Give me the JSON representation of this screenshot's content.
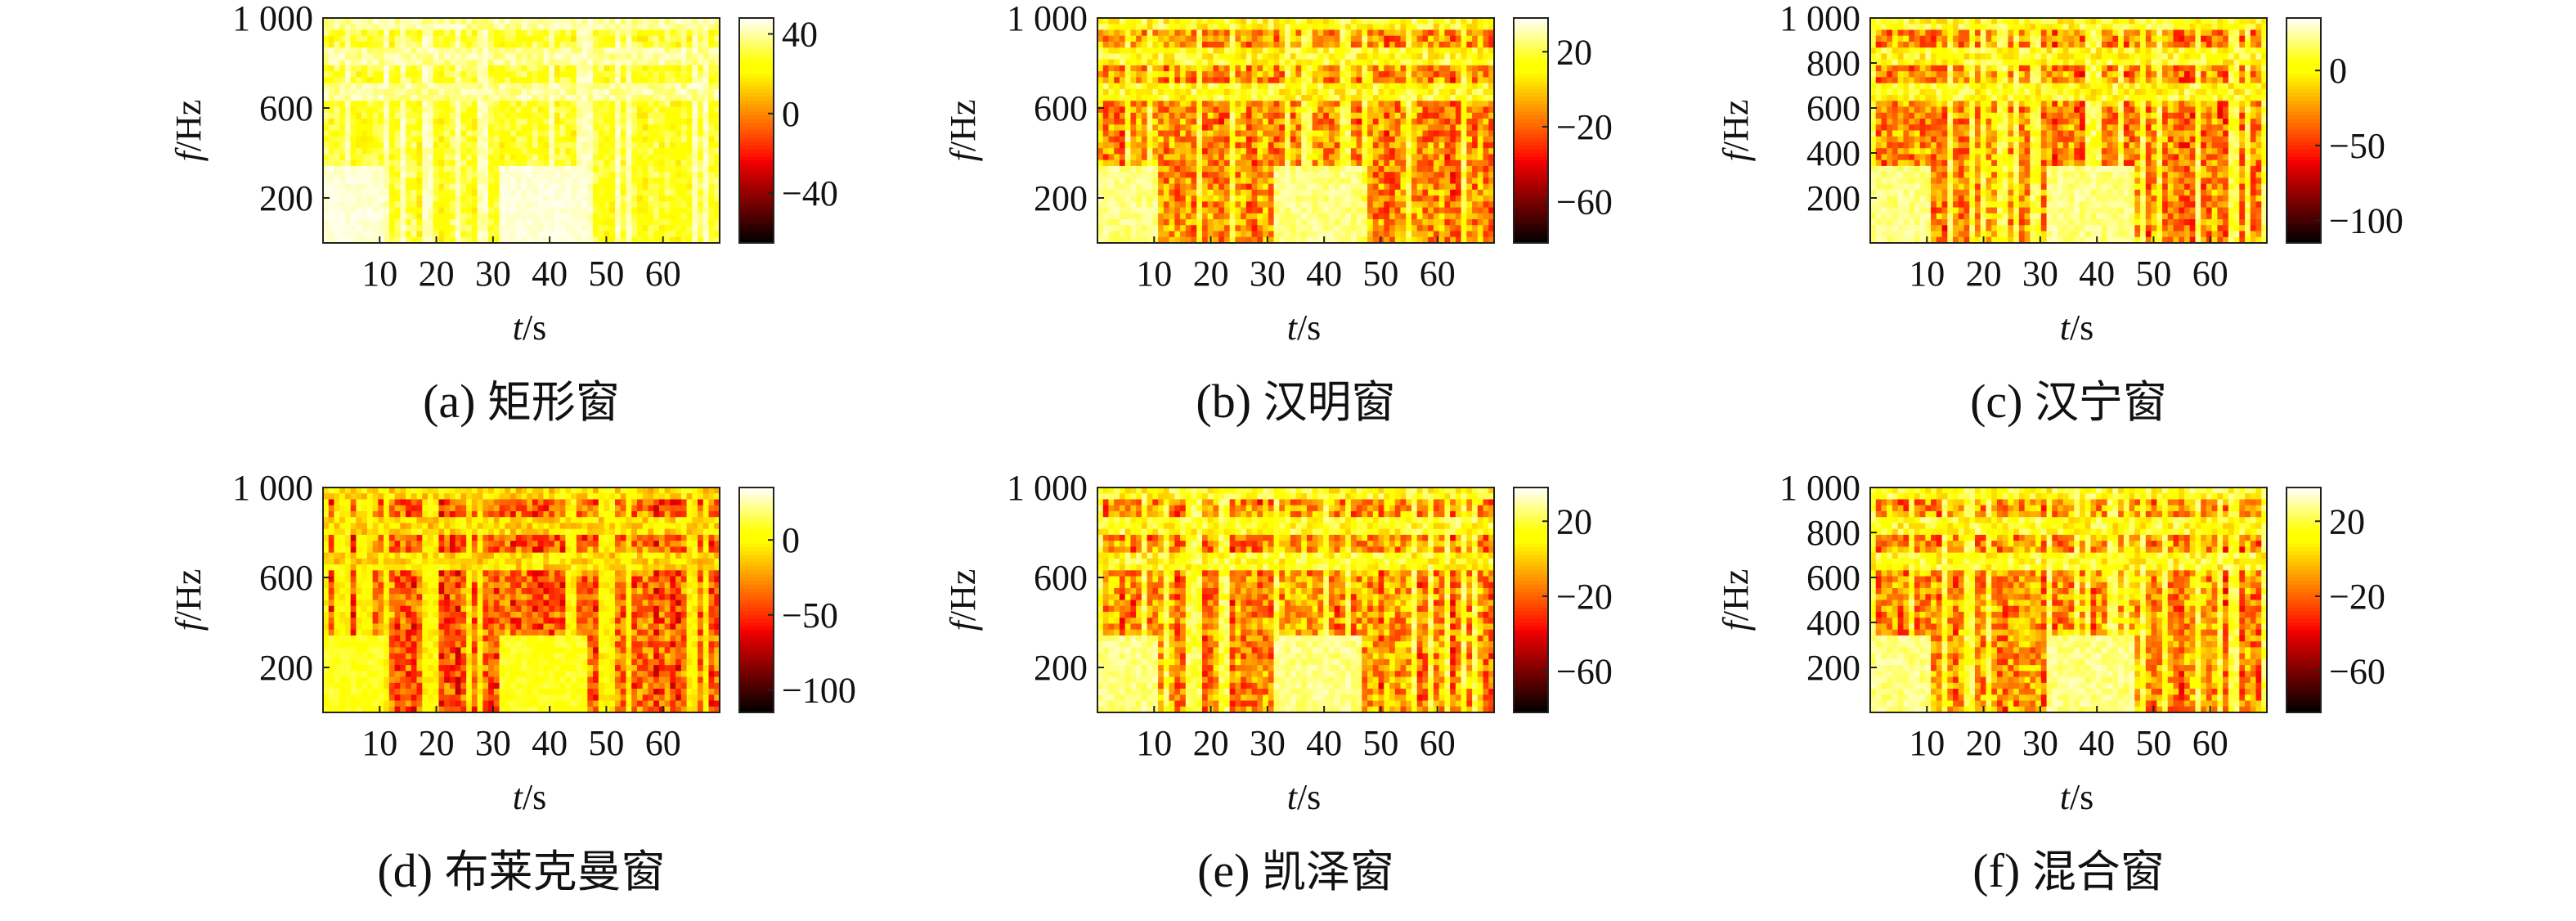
{
  "chart_data": [
    {
      "type": "heatmap",
      "panel_label": "(a)",
      "caption_text": "矩形窗",
      "xlabel_var": "t",
      "xlabel_unit": "/s",
      "ylabel_var": "f",
      "ylabel_unit": "/Hz",
      "x_ticks": [
        "10",
        "20",
        "30",
        "40",
        "50",
        "60"
      ],
      "x_tick_values": [
        10,
        20,
        30,
        40,
        50,
        60
      ],
      "y_ticks": [
        "1 000",
        "600",
        "200"
      ],
      "y_tick_values": [
        1000,
        600,
        200
      ],
      "xlim": [
        0,
        70
      ],
      "ylim": [
        0,
        1000
      ],
      "colorbar_ticks": [
        "40",
        "0",
        "−40"
      ],
      "colorbar_tick_values": [
        40,
        0,
        -40
      ],
      "clim": [
        -65,
        48
      ],
      "palette": "hot",
      "style": "bright"
    },
    {
      "type": "heatmap",
      "panel_label": "(b)",
      "caption_text": "汉明窗",
      "xlabel_var": "t",
      "xlabel_unit": "/s",
      "ylabel_var": "f",
      "ylabel_unit": "/Hz",
      "x_ticks": [
        "10",
        "20",
        "30",
        "40",
        "50",
        "60"
      ],
      "x_tick_values": [
        10,
        20,
        30,
        40,
        50,
        60
      ],
      "y_ticks": [
        "1 000",
        "600",
        "200"
      ],
      "y_tick_values": [
        1000,
        600,
        200
      ],
      "xlim": [
        0,
        70
      ],
      "ylim": [
        0,
        1000
      ],
      "colorbar_ticks": [
        "20",
        "−20",
        "−60"
      ],
      "colorbar_tick_values": [
        20,
        -20,
        -60
      ],
      "clim": [
        -82,
        38
      ],
      "palette": "hot",
      "style": "mixed"
    },
    {
      "type": "heatmap",
      "panel_label": "(c)",
      "caption_text": "汉宁窗",
      "xlabel_var": "t",
      "xlabel_unit": "/s",
      "ylabel_var": "f",
      "ylabel_unit": "/Hz",
      "x_ticks": [
        "10",
        "20",
        "30",
        "40",
        "50",
        "60"
      ],
      "x_tick_values": [
        10,
        20,
        30,
        40,
        50,
        60
      ],
      "y_ticks": [
        "1 000",
        "800",
        "600",
        "400",
        "200"
      ],
      "y_tick_values": [
        1000,
        800,
        600,
        400,
        200
      ],
      "xlim": [
        0,
        70
      ],
      "ylim": [
        0,
        1000
      ],
      "colorbar_ticks": [
        "0",
        "−50",
        "−100"
      ],
      "colorbar_tick_values": [
        0,
        -50,
        -100
      ],
      "clim": [
        -115,
        35
      ],
      "palette": "hot",
      "style": "mixed"
    },
    {
      "type": "heatmap",
      "panel_label": "(d)",
      "caption_text": "布莱克曼窗",
      "xlabel_var": "t",
      "xlabel_unit": "/s",
      "ylabel_var": "f",
      "ylabel_unit": "/Hz",
      "x_ticks": [
        "10",
        "20",
        "30",
        "40",
        "50",
        "60"
      ],
      "x_tick_values": [
        10,
        20,
        30,
        40,
        50,
        60
      ],
      "y_ticks": [
        "1 000",
        "600",
        "200"
      ],
      "y_tick_values": [
        1000,
        600,
        200
      ],
      "xlim": [
        0,
        70
      ],
      "ylim": [
        0,
        1000
      ],
      "colorbar_ticks": [
        "0",
        "−50",
        "−100"
      ],
      "colorbar_tick_values": [
        0,
        -50,
        -100
      ],
      "clim": [
        -115,
        35
      ],
      "palette": "hot",
      "style": "dark"
    },
    {
      "type": "heatmap",
      "panel_label": "(e)",
      "caption_text": "凯泽窗",
      "xlabel_var": "t",
      "xlabel_unit": "/s",
      "ylabel_var": "f",
      "ylabel_unit": "/Hz",
      "x_ticks": [
        "10",
        "20",
        "30",
        "40",
        "50",
        "60"
      ],
      "x_tick_values": [
        10,
        20,
        30,
        40,
        50,
        60
      ],
      "y_ticks": [
        "1 000",
        "600",
        "200"
      ],
      "y_tick_values": [
        1000,
        600,
        200
      ],
      "xlim": [
        0,
        70
      ],
      "ylim": [
        0,
        1000
      ],
      "colorbar_ticks": [
        "20",
        "−20",
        "−60"
      ],
      "colorbar_tick_values": [
        20,
        -20,
        -60
      ],
      "clim": [
        -82,
        38
      ],
      "palette": "hot",
      "style": "mixed"
    },
    {
      "type": "heatmap",
      "panel_label": "(f)",
      "caption_text": "混合窗",
      "xlabel_var": "t",
      "xlabel_unit": "/s",
      "ylabel_var": "f",
      "ylabel_unit": "/Hz",
      "x_ticks": [
        "10",
        "20",
        "30",
        "40",
        "50",
        "60"
      ],
      "x_tick_values": [
        10,
        20,
        30,
        40,
        50,
        60
      ],
      "y_ticks": [
        "1 000",
        "800",
        "600",
        "400",
        "200"
      ],
      "y_tick_values": [
        1000,
        800,
        600,
        400,
        200
      ],
      "xlim": [
        0,
        70
      ],
      "ylim": [
        0,
        1000
      ],
      "colorbar_ticks": [
        "20",
        "−20",
        "−60"
      ],
      "colorbar_tick_values": [
        20,
        -20,
        -60
      ],
      "clim": [
        -82,
        38
      ],
      "palette": "hot",
      "style": "mixed"
    }
  ]
}
